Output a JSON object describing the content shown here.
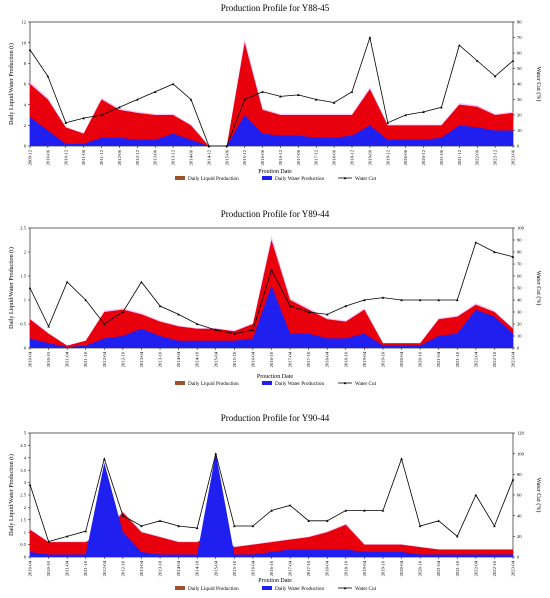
{
  "chart_data": [
    {
      "type": "area",
      "title": "Production Profile for Y88-45",
      "xlabel": "Proution Date",
      "ylabel": "Daily Liquid/Water Production (t)",
      "y2label": "Water Cut (%)",
      "ylim": [
        0,
        12
      ],
      "y2lim": [
        0,
        80
      ],
      "yticks": [
        "0",
        "2",
        "4",
        "6",
        "8",
        "10",
        "12"
      ],
      "y2ticks": [
        "0",
        "10",
        "20",
        "30",
        "40",
        "50",
        "60",
        "70",
        "80"
      ],
      "categories": [
        "2009-12",
        "2010-06",
        "2010-12",
        "2011-06",
        "2011-12",
        "2012-06",
        "2012-12",
        "2013-06",
        "2013-12",
        "2014-06",
        "2014-12",
        "2015-06",
        "2015-12",
        "2016-06",
        "2016-12",
        "2017-06",
        "2017-12",
        "2018-06",
        "2018-12",
        "2019-06",
        "2019-12",
        "2020-06",
        "2020-12",
        "2021-06",
        "2021-12",
        "2022-06",
        "2022-12",
        "2023-06"
      ],
      "series": [
        {
          "name": "Daily Liquid Production",
          "values": [
            6.0,
            4.5,
            1.8,
            1.2,
            4.5,
            3.5,
            3.2,
            3.0,
            3.0,
            2.0,
            0.0,
            0.0,
            10.0,
            3.5,
            3.0,
            3.0,
            3.0,
            3.0,
            3.0,
            5.5,
            2.0,
            2.0,
            2.0,
            2.0,
            4.0,
            3.8,
            3.0,
            3.2
          ]
        },
        {
          "name": "Daily Water Production",
          "values": [
            2.8,
            1.5,
            0.2,
            0.2,
            0.8,
            0.8,
            0.6,
            0.6,
            1.2,
            0.6,
            0.0,
            0.0,
            3.0,
            1.2,
            1.0,
            1.0,
            0.8,
            0.8,
            1.0,
            2.0,
            0.6,
            0.6,
            0.6,
            0.8,
            2.0,
            1.8,
            1.5,
            1.5
          ]
        },
        {
          "name": "Water Cut",
          "values": [
            62,
            45,
            15,
            18,
            20,
            25,
            30,
            35,
            40,
            30,
            0,
            0,
            30,
            35,
            32,
            33,
            30,
            28,
            35,
            70,
            15,
            20,
            22,
            25,
            65,
            55,
            45,
            55
          ]
        }
      ],
      "legend_position": "bottom"
    },
    {
      "type": "area",
      "title": "Production Profile for Y89-44",
      "xlabel": "Prouction Date",
      "ylabel": "Daily Liquid/Water Production (t)",
      "y2label": "Water Cut (%)",
      "ylim": [
        0,
        2.5
      ],
      "y2lim": [
        0,
        100
      ],
      "yticks": [
        "0",
        "0.5",
        "1",
        "1.5",
        "2",
        "2.5"
      ],
      "y2ticks": [
        "0",
        "10",
        "20",
        "30",
        "40",
        "50",
        "60",
        "70",
        "80",
        "90",
        "100"
      ],
      "categories": [
        "2010-04",
        "2010-10",
        "2011-04",
        "2011-10",
        "2012-04",
        "2012-10",
        "2013-04",
        "2013-10",
        "2014-04",
        "2014-10",
        "2015-04",
        "2015-10",
        "2016-04",
        "2016-10",
        "2017-04",
        "2017-10",
        "2018-04",
        "2018-10",
        "2019-04",
        "2019-10",
        "2020-04",
        "2020-10",
        "2021-04",
        "2021-10",
        "2022-04",
        "2022-10",
        "2023-04"
      ],
      "series": [
        {
          "name": "Daily Liquid Production",
          "values": [
            0.6,
            0.3,
            0.05,
            0.15,
            0.75,
            0.8,
            0.7,
            0.55,
            0.45,
            0.4,
            0.4,
            0.35,
            0.5,
            2.25,
            1.0,
            0.8,
            0.6,
            0.55,
            0.8,
            0.1,
            0.1,
            0.1,
            0.6,
            0.65,
            0.9,
            0.75,
            0.4
          ]
        },
        {
          "name": "Daily Water Production",
          "values": [
            0.2,
            0.1,
            0.02,
            0.05,
            0.2,
            0.25,
            0.4,
            0.25,
            0.15,
            0.15,
            0.15,
            0.15,
            0.2,
            1.3,
            0.3,
            0.3,
            0.2,
            0.2,
            0.3,
            0.05,
            0.05,
            0.05,
            0.25,
            0.3,
            0.8,
            0.65,
            0.3
          ]
        },
        {
          "name": "Water Cut",
          "values": [
            50,
            18,
            55,
            40,
            20,
            30,
            55,
            35,
            28,
            20,
            15,
            12,
            15,
            65,
            35,
            30,
            28,
            35,
            40,
            42,
            40,
            40,
            40,
            40,
            88,
            80,
            76
          ]
        }
      ],
      "legend_position": "bottom"
    },
    {
      "type": "area",
      "title": "Production Profile for Y90-44",
      "xlabel": "Proution Date",
      "ylabel": "Daily Liquid/Water Production (t)",
      "y2label": "Water Cut (%)",
      "ylim": [
        0,
        5
      ],
      "y2lim": [
        0,
        120
      ],
      "yticks": [
        "0",
        "0.5",
        "1",
        "1.5",
        "2",
        "2.5",
        "3",
        "3.5",
        "4",
        "4.5",
        "5"
      ],
      "y2ticks": [
        "0",
        "20",
        "40",
        "60",
        "80",
        "100",
        "120"
      ],
      "categories": [
        "2010-04",
        "2010-10",
        "2011-04",
        "2011-10",
        "2012-04",
        "2012-10",
        "2013-04",
        "2013-10",
        "2014-04",
        "2014-10",
        "2015-04",
        "2015-10",
        "2016-04",
        "2016-10",
        "2017-04",
        "2017-10",
        "2018-04",
        "2018-10",
        "2019-04",
        "2019-10",
        "2020-04",
        "2020-10",
        "2021-04",
        "2021-10",
        "2022-04",
        "2022-10",
        "2023-04"
      ],
      "series": [
        {
          "name": "Daily Liquid Production",
          "values": [
            1.1,
            0.6,
            0.6,
            0.6,
            1.0,
            1.8,
            1.0,
            0.8,
            0.6,
            0.6,
            1.0,
            0.4,
            0.5,
            0.6,
            0.7,
            0.8,
            1.0,
            1.3,
            0.5,
            0.5,
            0.5,
            0.4,
            0.3,
            0.3,
            0.3,
            0.3,
            0.3
          ]
        },
        {
          "name": "Daily Water Production",
          "values": [
            0.2,
            0.1,
            0.1,
            0.1,
            3.8,
            1.0,
            0.2,
            0.1,
            0.1,
            0.1,
            4.2,
            0.1,
            0.1,
            0.2,
            0.3,
            0.3,
            0.3,
            0.3,
            0.2,
            0.2,
            0.2,
            0.1,
            0.1,
            0.1,
            0.1,
            0.1,
            0.1
          ]
        },
        {
          "name": "Water Cut",
          "values": [
            70,
            15,
            20,
            25,
            95,
            40,
            30,
            35,
            30,
            28,
            100,
            30,
            30,
            45,
            50,
            35,
            35,
            45,
            45,
            45,
            95,
            30,
            35,
            20,
            60,
            30,
            75
          ]
        }
      ],
      "legend_position": "bottom"
    }
  ],
  "colors": {
    "liquid": "#e8000d",
    "liquid_legend": "#a0522d",
    "water": "#1f1ff0",
    "watercut": "#000000",
    "halo": "#f3b7f3"
  }
}
